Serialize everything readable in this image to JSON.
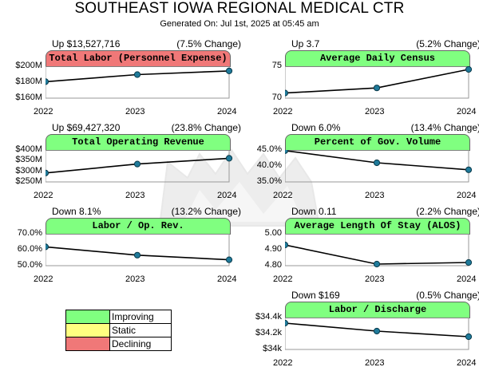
{
  "header": {
    "title": "SOUTHEAST IOWA REGIONAL MEDICAL CTR",
    "subtitle": "Generated On: Jul 1st, 2025 at 05:45 am"
  },
  "legend": [
    {
      "label": "Improving",
      "color": "#80ff80"
    },
    {
      "label": "Static",
      "color": "#ffff80"
    },
    {
      "label": "Declining",
      "color": "#f07878"
    }
  ],
  "chart_data": [
    {
      "type": "line",
      "title": "Total Labor (Personnel Expense)",
      "status": "declining",
      "change": "Up $13,527,716",
      "pct": "(7.5% Change)",
      "x": [
        "2022",
        "2023",
        "2024"
      ],
      "values": [
        180.6,
        189.5,
        194.1
      ],
      "ylim": [
        160,
        200
      ],
      "yticks": [
        200,
        180,
        160
      ],
      "ytick_labels": [
        "$200M",
        "$180M",
        "$160M"
      ]
    },
    {
      "type": "line",
      "title": "Average Daily Census",
      "status": "improving",
      "change": "Up 3.7",
      "pct": "(5.2% Change)",
      "x": [
        "2022",
        "2023",
        "2024"
      ],
      "values": [
        70.8,
        71.6,
        74.5
      ],
      "ylim": [
        70,
        75
      ],
      "yticks": [
        75,
        70
      ],
      "ytick_labels": [
        "75",
        "70"
      ]
    },
    {
      "type": "line",
      "title": "Total Operating Revenue",
      "status": "improving",
      "change": "Up $69,427,320",
      "pct": "(23.8% Change)",
      "x": [
        "2022",
        "2023",
        "2024"
      ],
      "values": [
        292,
        334,
        361
      ],
      "ylim": [
        250,
        400
      ],
      "yticks": [
        400,
        350,
        300,
        250
      ],
      "ytick_labels": [
        "$400M",
        "$350M",
        "$300M",
        "$250M"
      ]
    },
    {
      "type": "line",
      "title": "Percent of Gov. Volume",
      "status": "improving",
      "change": "Down 6.0%",
      "pct": "(13.4% Change)",
      "x": [
        "2022",
        "2023",
        "2024"
      ],
      "values": [
        44.8,
        41.0,
        38.8
      ],
      "ylim": [
        35,
        45
      ],
      "yticks": [
        45,
        40,
        35
      ],
      "ytick_labels": [
        "45.0%",
        "40.0%",
        "35.0%"
      ]
    },
    {
      "type": "line",
      "title": "Labor / Op. Rev.",
      "status": "improving",
      "change": "Down 8.1%",
      "pct": "(13.2% Change)",
      "x": [
        "2022",
        "2023",
        "2024"
      ],
      "values": [
        61.8,
        56.6,
        53.7
      ],
      "ylim": [
        50,
        70
      ],
      "yticks": [
        70,
        60,
        50
      ],
      "ytick_labels": [
        "70.0%",
        "60.0%",
        "50.0%"
      ]
    },
    {
      "type": "line",
      "title": "Average Length Of Stay (ALOS)",
      "status": "improving",
      "change": "Down 0.11",
      "pct": "(2.2% Change)",
      "x": [
        "2022",
        "2023",
        "2024"
      ],
      "values": [
        4.93,
        4.81,
        4.82
      ],
      "ylim": [
        4.8,
        5.0
      ],
      "yticks": [
        5.0,
        4.9,
        4.8
      ],
      "ytick_labels": [
        "5.00",
        "4.90",
        "4.80"
      ]
    },
    {
      "type": "line",
      "title": "Labor / Discharge",
      "status": "improving",
      "change": "Down $169",
      "pct": "(0.5% Change)",
      "x": [
        "2022",
        "2023",
        "2024"
      ],
      "values": [
        34.33,
        34.23,
        34.16
      ],
      "ylim": [
        34.0,
        34.4
      ],
      "yticks": [
        34.4,
        34.2,
        34.0
      ],
      "ytick_labels": [
        "$34.4k",
        "$34.2k",
        "$34k"
      ]
    }
  ]
}
